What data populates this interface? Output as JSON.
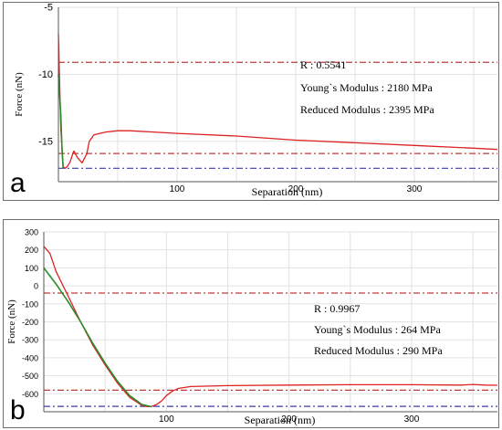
{
  "chart_data": [
    {
      "panel_label": "a",
      "type": "line",
      "xlabel": "Separation (nm)",
      "ylabel": "Force (nN)",
      "xlim": [
        0,
        370
      ],
      "ylim": [
        -18,
        -5
      ],
      "x_ticks": [
        "100",
        "200",
        "300"
      ],
      "x_tick_values": [
        100,
        200,
        300
      ],
      "y_ticks": [
        "-5",
        "-10",
        "-15"
      ],
      "y_tick_values": [
        -5,
        -10,
        -15
      ],
      "grid": true,
      "annotations": [
        "R : 0.5541",
        "Young`s Modulus : 2180 MPa",
        "Reduced Modulus : 2395 MPa"
      ],
      "colors": {
        "curve": "#dd2222",
        "fit": "#2b8a2b",
        "ref_red": "#c03a3a",
        "ref_blue": "#3a3ab0"
      },
      "reference_lines": [
        {
          "y": -9.1,
          "color": "red"
        },
        {
          "y": -15.9,
          "color": "red"
        },
        {
          "y": -17.0,
          "color": "blue"
        }
      ],
      "series": [
        {
          "role": "approach",
          "x": [
            0,
            2,
            4,
            6,
            8,
            10,
            11,
            13
          ],
          "y": [
            -7.0,
            -14.0,
            -16.9,
            -17.0,
            -16.8,
            -16.5,
            -16.2,
            -15.7
          ]
        },
        {
          "role": "retract",
          "x": [
            13,
            16,
            20,
            24,
            26,
            30,
            40,
            50,
            60,
            80,
            100,
            150,
            200,
            250,
            300,
            350,
            370
          ],
          "y": [
            -15.7,
            -16.2,
            -16.6,
            -15.9,
            -15.0,
            -14.5,
            -14.3,
            -14.2,
            -14.2,
            -14.3,
            -14.4,
            -14.6,
            -14.9,
            -15.1,
            -15.3,
            -15.5,
            -15.6
          ]
        },
        {
          "role": "fit",
          "x": [
            0,
            2,
            3,
            4
          ],
          "y": [
            -10.0,
            -13.0,
            -15.5,
            -17.0
          ]
        }
      ]
    },
    {
      "panel_label": "b",
      "type": "line",
      "xlabel": "Separation (nm)",
      "ylabel": "Force (nN)",
      "xlim": [
        0,
        370
      ],
      "ylim": [
        -700,
        300
      ],
      "x_ticks": [
        "100",
        "200",
        "300"
      ],
      "x_tick_values": [
        100,
        200,
        300
      ],
      "y_ticks": [
        "300",
        "200",
        "100",
        "0",
        "-100",
        "-200",
        "-300",
        "-400",
        "-500",
        "-600"
      ],
      "y_tick_values": [
        300,
        200,
        100,
        0,
        -100,
        -200,
        -300,
        -400,
        -500,
        -600
      ],
      "grid": true,
      "annotations": [
        "R : 0.9967",
        "Young`s Modulus : 264 MPa",
        "Reduced Modulus : 290 MPa"
      ],
      "colors": {
        "curve": "#dd2222",
        "fit": "#2b8a2b",
        "ref_red": "#c03a3a",
        "ref_blue": "#3a3ab0"
      },
      "reference_lines": [
        {
          "y": -40,
          "color": "red"
        },
        {
          "y": -580,
          "color": "red"
        },
        {
          "y": -670,
          "color": "blue"
        }
      ],
      "series": [
        {
          "role": "approach",
          "x": [
            0,
            5,
            10,
            20,
            30,
            40,
            50,
            60,
            70,
            80,
            85,
            88,
            92,
            96
          ],
          "y": [
            220,
            180,
            80,
            -60,
            -200,
            -330,
            -440,
            -540,
            -620,
            -665,
            -672,
            -670,
            -660,
            -640
          ]
        },
        {
          "role": "retract",
          "x": [
            96,
            100,
            105,
            110,
            120,
            150,
            200,
            250,
            300,
            340,
            350,
            360,
            370
          ],
          "y": [
            -640,
            -610,
            -585,
            -570,
            -560,
            -555,
            -552,
            -550,
            -550,
            -552,
            -548,
            -552,
            -553
          ]
        },
        {
          "role": "fit",
          "x": [
            0,
            10,
            20,
            30,
            40,
            50,
            60,
            70,
            80,
            88
          ],
          "y": [
            100,
            10,
            -90,
            -200,
            -320,
            -430,
            -530,
            -610,
            -660,
            -672
          ]
        }
      ]
    }
  ]
}
